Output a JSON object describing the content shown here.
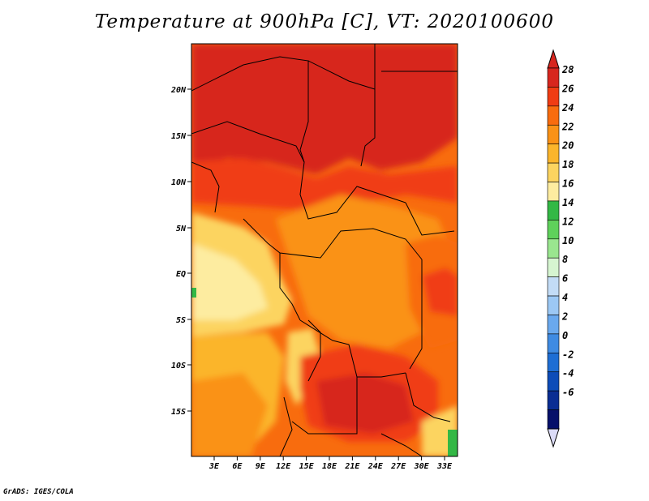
{
  "title": "Temperature at 900hPa [C], VT: 2020100600",
  "footer": "GrADS: IGES/COLA",
  "lat_ticks": [
    "20N",
    "15N",
    "10N",
    "5N",
    "EQ",
    "5S",
    "10S",
    "15S"
  ],
  "lon_ticks": [
    "3E",
    "6E",
    "9E",
    "12E",
    "15E",
    "18E",
    "21E",
    "24E",
    "27E",
    "30E",
    "33E"
  ],
  "colorbar": {
    "labels": [
      "28",
      "26",
      "24",
      "22",
      "20",
      "18",
      "16",
      "14",
      "12",
      "10",
      "8",
      "6",
      "4",
      "2",
      "0",
      "-2",
      "-4",
      "-6"
    ],
    "colors": [
      "#d7261e",
      "#f03c13",
      "#f86c0e",
      "#fa9216",
      "#fbb52b",
      "#fcd460",
      "#fdeca0",
      "#33b845",
      "#5fd15b",
      "#9ae68f",
      "#d6f5d0",
      "#c3dcf6",
      "#9cc8f4",
      "#6aa9ee",
      "#3f8be2",
      "#1e6ed4",
      "#0d4cb8",
      "#0a2d93",
      "#06106a"
    ],
    "top_arrow_color": "#d7261e",
    "bottom_arrow_color": "#dcdcf8"
  }
}
